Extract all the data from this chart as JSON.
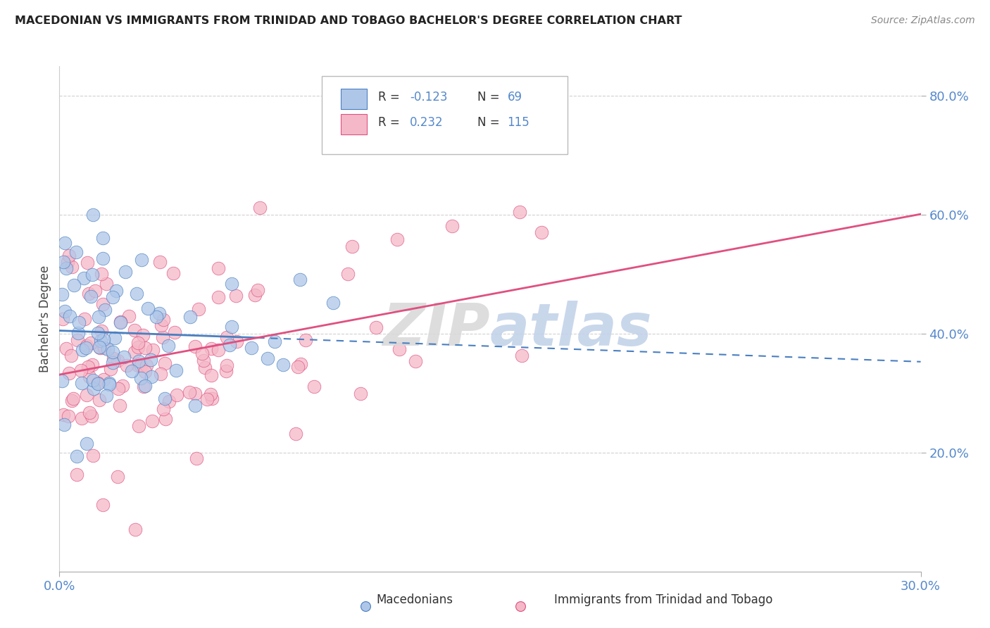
{
  "title": "MACEDONIAN VS IMMIGRANTS FROM TRINIDAD AND TOBAGO BACHELOR'S DEGREE CORRELATION CHART",
  "source": "Source: ZipAtlas.com",
  "ylabel": "Bachelor's Degree",
  "xlim": [
    0.0,
    0.3
  ],
  "ylim": [
    0.0,
    0.85
  ],
  "xticks": [
    0.0,
    0.3
  ],
  "xticklabels": [
    "0.0%",
    "30.0%"
  ],
  "yticks": [
    0.2,
    0.4,
    0.6,
    0.8
  ],
  "yticklabels": [
    "20.0%",
    "40.0%",
    "60.0%",
    "80.0%"
  ],
  "macedonian_color": "#aec6e8",
  "trinidad_color": "#f4b8c8",
  "trend_mac_color": "#4a7fc1",
  "trend_trin_color": "#e05080",
  "tick_color": "#5588cc",
  "background_color": "#ffffff",
  "grid_color": "#cccccc",
  "watermark_zip_color": "#d8d8d8",
  "watermark_atlas_color": "#c0d0e8"
}
